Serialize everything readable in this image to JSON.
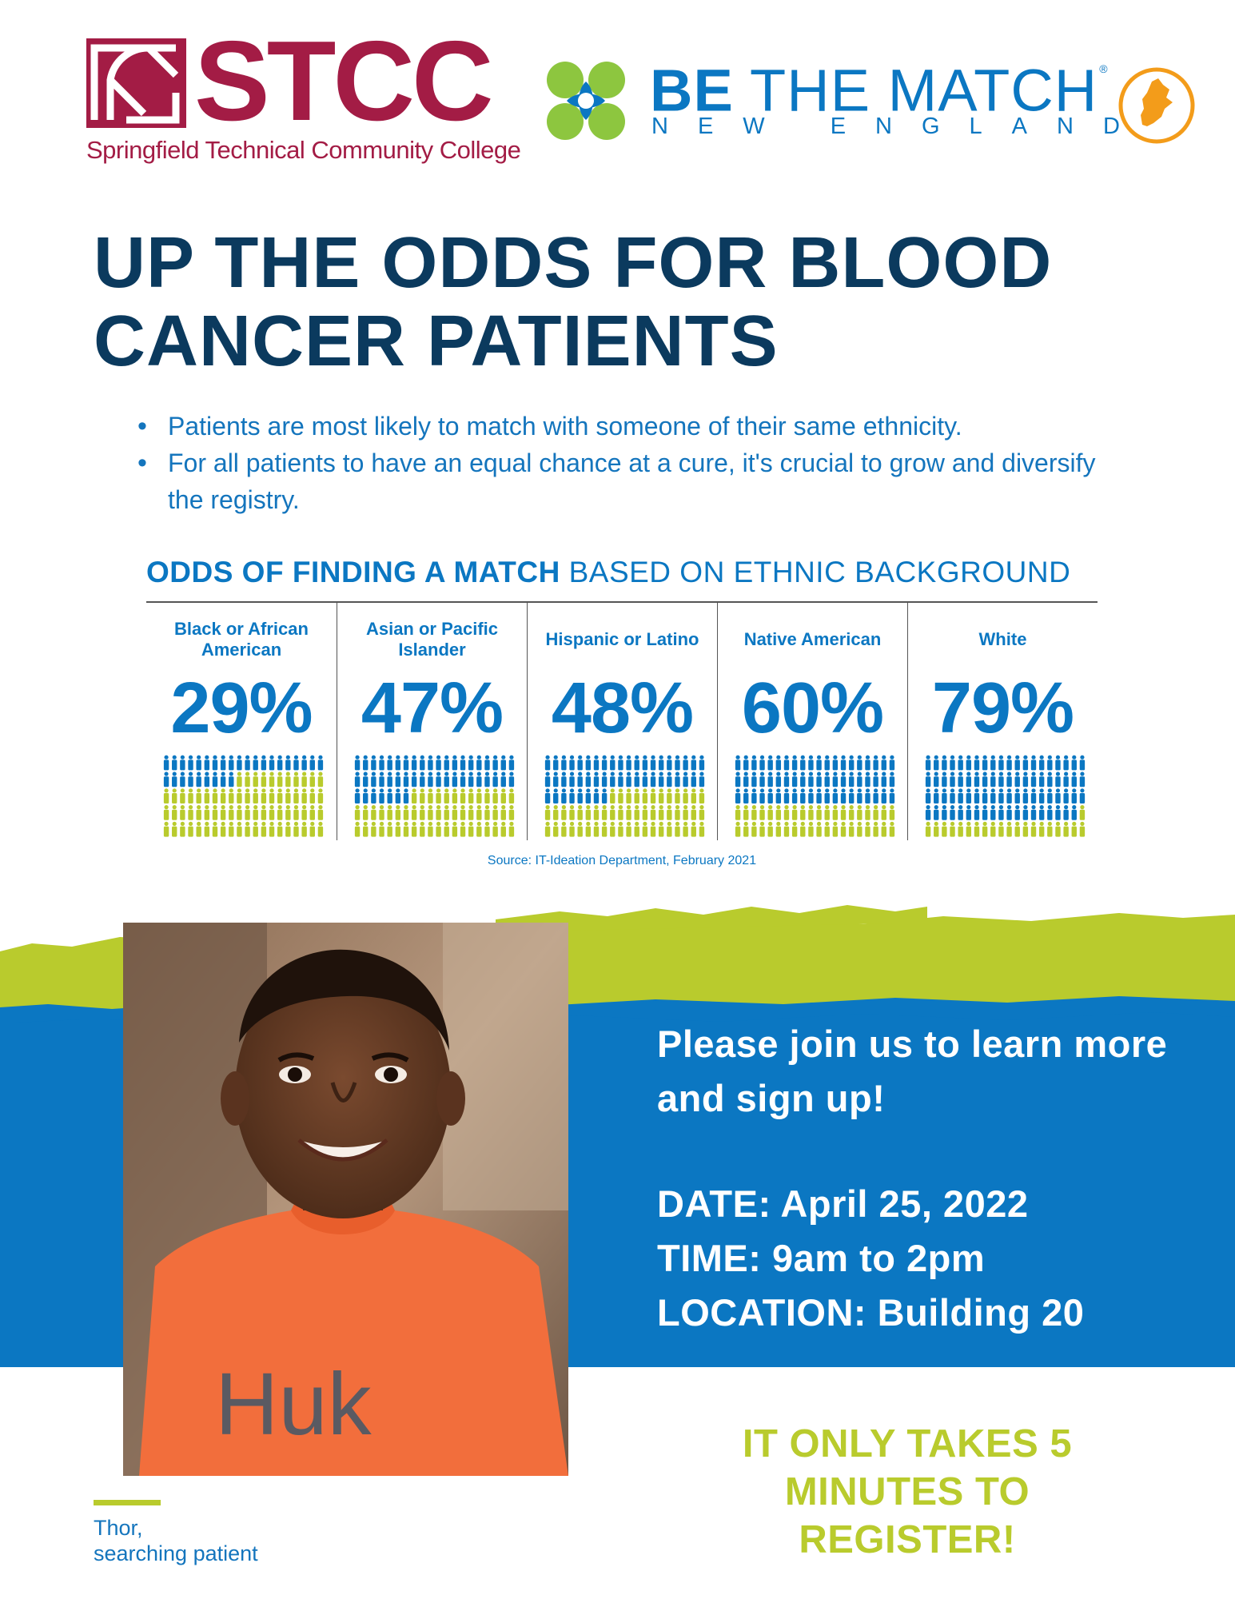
{
  "logos": {
    "stcc": {
      "name": "STCC",
      "subtitle": "Springfield Technical Community College",
      "color": "#a31c45"
    },
    "btm": {
      "name_bold": "BE",
      "name_rest": "THE MATCH",
      "registered": "®",
      "subtitle": "NEW ENGLAND",
      "color": "#0b77c2",
      "accent_green": "#8dc63f",
      "accent_orange": "#f39c1a"
    }
  },
  "headline": {
    "line1": "UP THE ODDS FOR BLOOD",
    "line2": "CANCER PATIENTS"
  },
  "bullets": [
    "Patients are most likely to match with someone of their same ethnicity.",
    "For all patients to have an equal chance at a cure, it's crucial to grow and diversify the registry."
  ],
  "odds": {
    "title_bold": "ODDS OF FINDING A MATCH",
    "title_rest": "BASED ON ETHNIC BACKGROUND",
    "source": "Source: IT-Ideation Department, February 2021",
    "colors": {
      "match": "#0b77c2",
      "no_match": "#b9cb2d"
    },
    "total_figures": 100,
    "groups": [
      {
        "label": "Black or African American",
        "percent_text": "29%",
        "percent": 29
      },
      {
        "label": "Asian or Pacific Islander",
        "percent_text": "47%",
        "percent": 47
      },
      {
        "label": "Hispanic or Latino",
        "percent_text": "48%",
        "percent": 48
      },
      {
        "label": "Native American",
        "percent_text": "60%",
        "percent": 60
      },
      {
        "label": "White",
        "percent_text": "79%",
        "percent": 79
      }
    ]
  },
  "event": {
    "invite": "Please join us to learn more and sign up!",
    "date": "DATE: April 25, 2022",
    "time": "TIME: 9am to 2pm",
    "location": "LOCATION: Building 20"
  },
  "cta": "IT ONLY TAKES 5 MINUTES TO REGISTER!",
  "photo": {
    "shirt_text": "Huk"
  },
  "caption": {
    "line1": "Thor,",
    "line2": "searching patient"
  },
  "theme": {
    "navy": "#0b3a5e",
    "blue": "#0b77c2",
    "lime": "#b9cb2d"
  }
}
